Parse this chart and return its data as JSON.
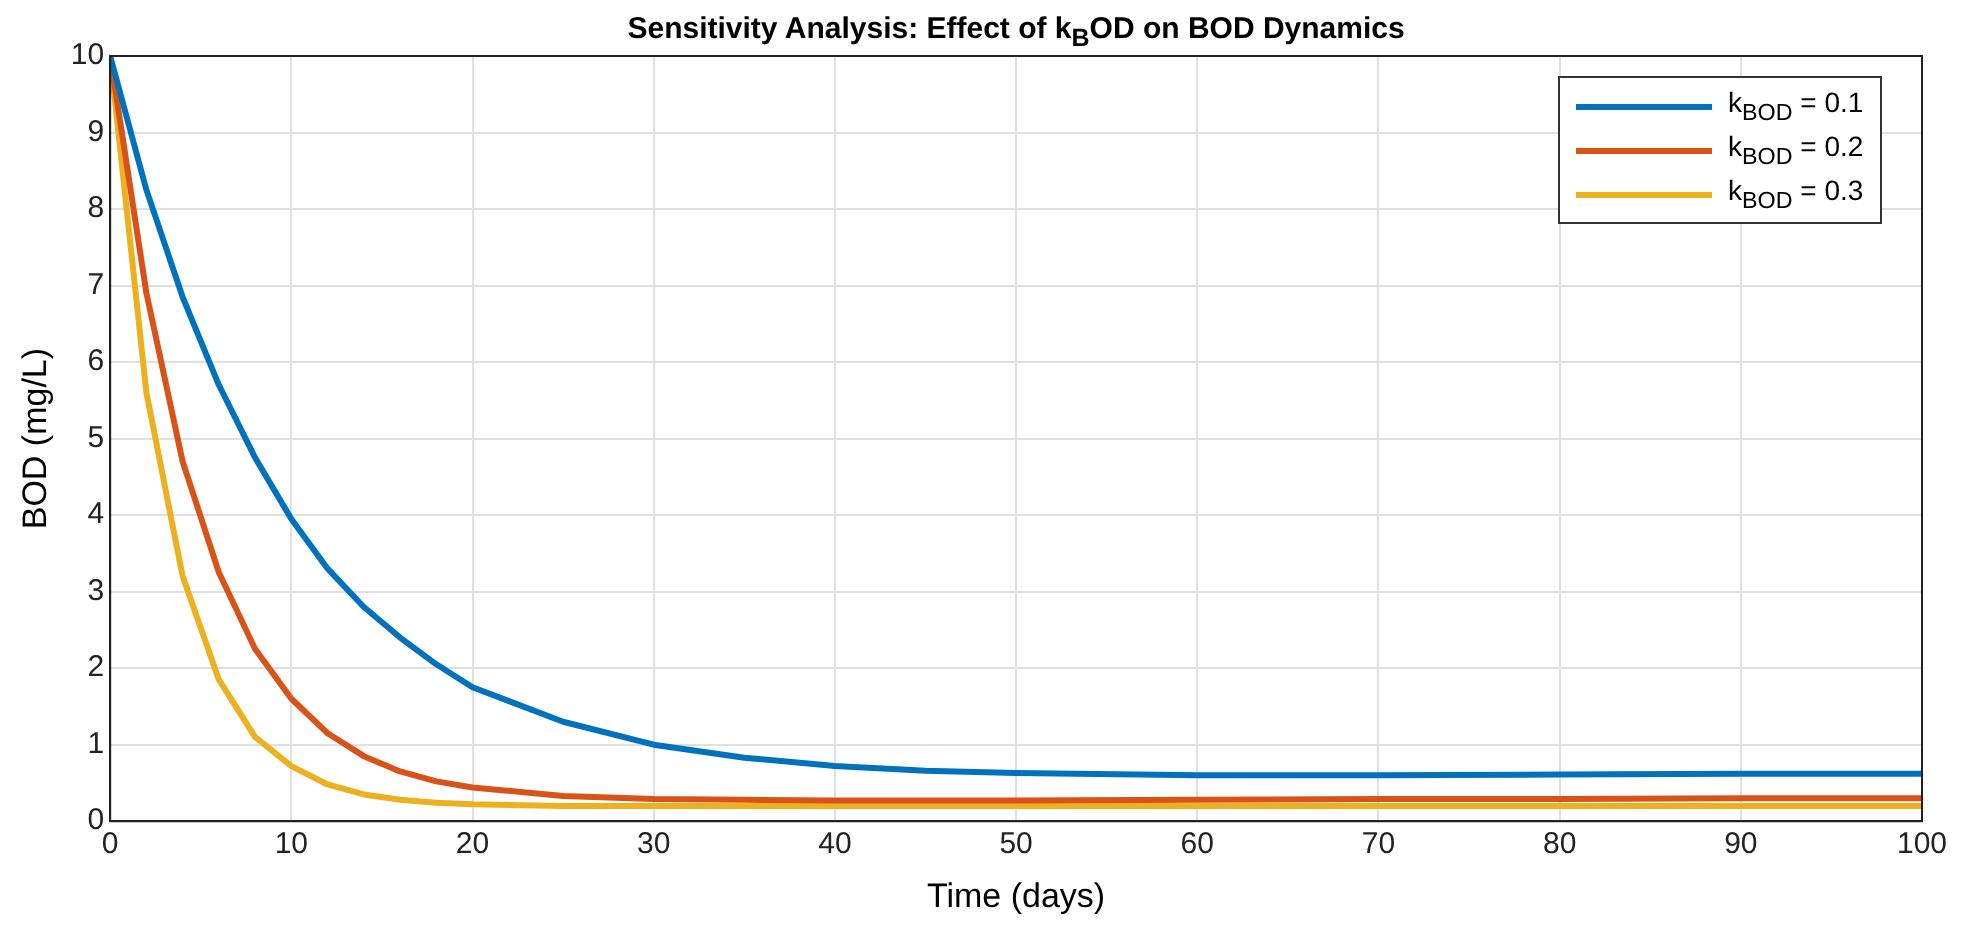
{
  "chart_data": {
    "type": "line",
    "title": "Sensitivity Analysis: Effect of k$_{B}$OD on BOD Dynamics",
    "xlabel": "Time (days)",
    "ylabel": "BOD (mg/L)",
    "x": [
      0,
      2,
      4,
      6,
      8,
      10,
      12,
      14,
      16,
      18,
      20,
      25,
      30,
      35,
      40,
      45,
      50,
      60,
      70,
      80,
      90,
      100
    ],
    "series": [
      {
        "name": "k$_{BOD}$ = 0.1",
        "color": "#0072bd",
        "values": [
          10,
          8.25,
          6.85,
          5.7,
          4.75,
          3.95,
          3.3,
          2.8,
          2.4,
          2.05,
          1.75,
          1.3,
          1.0,
          0.83,
          0.72,
          0.66,
          0.63,
          0.6,
          0.6,
          0.61,
          0.62,
          0.62
        ]
      },
      {
        "name": "k$_{BOD}$ = 0.2",
        "color": "#d95319",
        "values": [
          10,
          6.9,
          4.7,
          3.25,
          2.25,
          1.6,
          1.15,
          0.85,
          0.65,
          0.52,
          0.44,
          0.33,
          0.29,
          0.28,
          0.27,
          0.27,
          0.27,
          0.28,
          0.29,
          0.29,
          0.3,
          0.3
        ]
      },
      {
        "name": "k$_{BOD}$ = 0.3",
        "color": "#edb120",
        "values": [
          10,
          5.6,
          3.2,
          1.85,
          1.1,
          0.72,
          0.48,
          0.35,
          0.28,
          0.24,
          0.22,
          0.2,
          0.2,
          0.2,
          0.2,
          0.2,
          0.2,
          0.2,
          0.2,
          0.2,
          0.2,
          0.2
        ]
      }
    ],
    "xlim": [
      0,
      100
    ],
    "xticks": [
      0,
      10,
      20,
      30,
      40,
      50,
      60,
      70,
      80,
      90,
      100
    ],
    "ylim": [
      0,
      10
    ],
    "yticks": [
      0,
      1,
      2,
      3,
      4,
      5,
      6,
      7,
      8,
      9,
      10
    ],
    "grid": true,
    "legend": "top right",
    "marker": "none",
    "line_style": "solid"
  }
}
